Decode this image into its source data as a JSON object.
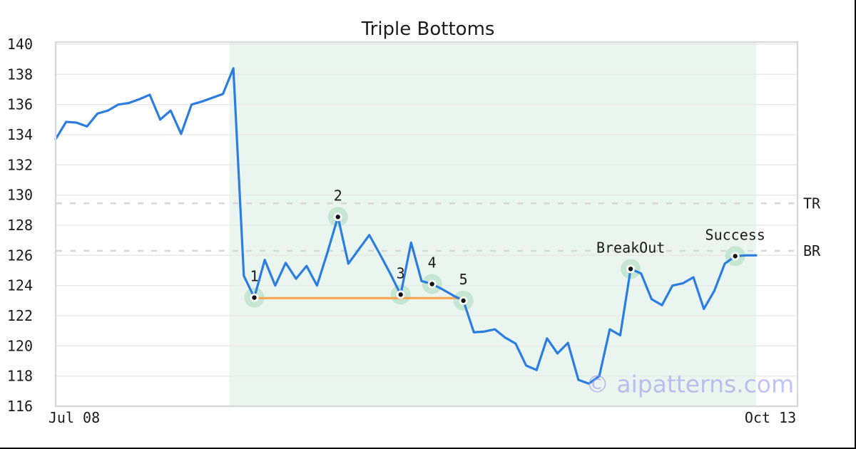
{
  "title": "Triple Bottoms",
  "watermark": "© aipatterns.com",
  "colors": {
    "line": "#2b7de0",
    "support_line": "#f9a24b",
    "pattern_shade": "#ebf5f0",
    "marker_halo": "#c5e7d2",
    "marker_dot": "#111111",
    "dashed_level": "#d9d9d9",
    "gridline": "#e8e8e8",
    "spine": "#d9d9d9",
    "text": "#1a1a1a",
    "watermark": "#9799f0"
  },
  "chart_data": {
    "type": "line",
    "title": "Triple Bottoms",
    "x_tick_labels": [
      "Jul 08",
      "Oct 13"
    ],
    "ylim": [
      116,
      140
    ],
    "y_tick_step": 2,
    "grid": "horizontal",
    "series": [
      {
        "name": "price",
        "values": [
          133.7,
          134.85,
          134.8,
          134.55,
          135.4,
          135.6,
          136.0,
          136.1,
          136.35,
          136.65,
          135.0,
          135.6,
          134.05,
          136.0,
          136.2,
          136.45,
          136.7,
          138.4,
          124.65,
          123.2,
          125.7,
          124.0,
          125.5,
          124.45,
          125.3,
          124.0,
          126.2,
          128.55,
          125.45,
          126.4,
          127.35,
          126.1,
          124.8,
          123.4,
          126.85,
          124.3,
          124.1,
          123.75,
          123.35,
          123.0,
          120.9,
          120.95,
          121.1,
          120.55,
          120.15,
          118.7,
          118.4,
          120.5,
          119.5,
          120.2,
          117.75,
          117.5,
          118.0,
          121.1,
          120.7,
          125.1,
          124.8,
          123.1,
          122.7,
          124.0,
          124.15,
          124.55,
          122.45,
          123.65,
          125.45,
          125.95,
          126.0,
          126.0
        ]
      }
    ],
    "pattern_region": {
      "start_index": 16.6,
      "end_index": 67
    },
    "support_line": {
      "value": 123.17,
      "from_index": 19,
      "to_index": 39
    },
    "level_lines": [
      {
        "label": "TR",
        "value": 129.45
      },
      {
        "label": "BR",
        "value": 126.3
      }
    ],
    "markers": [
      {
        "index": 19,
        "label": "1",
        "value": 123.2
      },
      {
        "index": 27,
        "label": "2",
        "value": 128.55
      },
      {
        "index": 33,
        "label": "3",
        "value": 123.4
      },
      {
        "index": 36,
        "label": "4",
        "value": 124.1
      },
      {
        "index": 39,
        "label": "5",
        "value": 123.0
      },
      {
        "index": 55,
        "label": "BreakOut",
        "value": 125.1
      },
      {
        "index": 65,
        "label": "Success",
        "value": 125.95
      }
    ]
  }
}
